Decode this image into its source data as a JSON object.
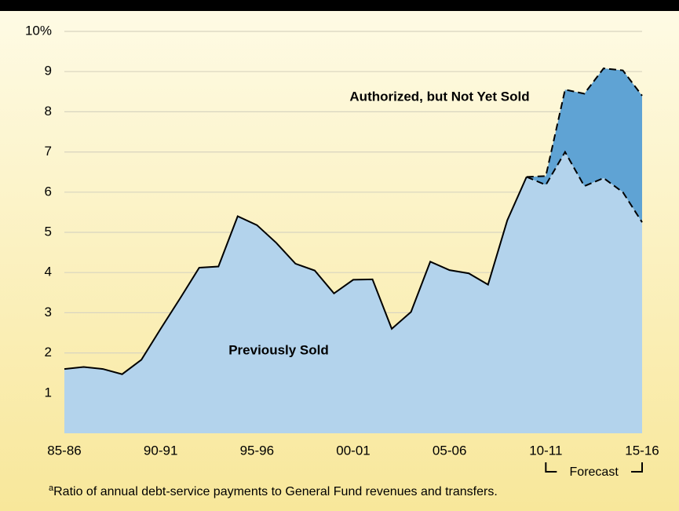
{
  "chart_data": {
    "type": "stacked-area",
    "categories": [
      "85-86",
      null,
      null,
      null,
      null,
      "90-91",
      null,
      null,
      null,
      null,
      "95-96",
      null,
      null,
      null,
      null,
      "00-01",
      null,
      null,
      null,
      null,
      "05-06",
      null,
      null,
      null,
      null,
      "10-11",
      null,
      null,
      null,
      null,
      "15-16"
    ],
    "series": [
      {
        "name": "Previously Sold",
        "color": "#b3d3ec",
        "values": [
          1.6,
          1.65,
          1.6,
          1.47,
          1.83,
          2.6,
          3.35,
          4.12,
          4.15,
          5.4,
          5.18,
          4.74,
          4.22,
          4.05,
          3.48,
          3.82,
          3.83,
          2.6,
          3.02,
          4.27,
          4.06,
          3.98,
          3.7,
          5.3,
          6.38,
          6.18,
          7.0,
          6.15,
          6.35,
          6.0,
          5.25
        ]
      },
      {
        "name": "Authorized, but Not Yet Sold",
        "color": "#5fa3d4",
        "values": [
          null,
          null,
          null,
          null,
          null,
          null,
          null,
          null,
          null,
          null,
          null,
          null,
          null,
          null,
          null,
          null,
          null,
          null,
          null,
          null,
          null,
          null,
          null,
          null,
          0,
          0.22,
          1.55,
          2.3,
          2.73,
          3.03,
          3.15
        ]
      }
    ],
    "ylim": [
      0,
      10
    ],
    "yticks": [
      1,
      2,
      3,
      4,
      5,
      6,
      7,
      8,
      9,
      {
        "value": 10,
        "label": "10%"
      }
    ],
    "grid": true,
    "annotation": "Forecast",
    "footnote_marker": "a",
    "footnote": "Ratio of annual debt-service payments to General Fund revenues and transfers."
  }
}
